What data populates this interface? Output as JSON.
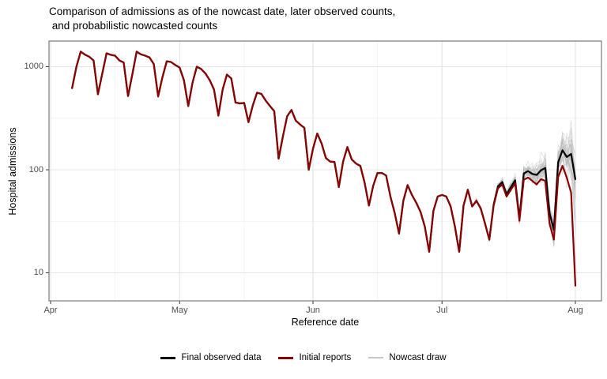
{
  "chart_data": {
    "type": "line",
    "title_line1": "Comparison of admissions as of the nowcast date, later observed counts,",
    "title_line2": " and probabilistic nowcasted counts",
    "xlabel": "Reference date",
    "ylabel": "Hospital admissions",
    "y_scale": "log10",
    "axes": {
      "y_ticks": [
        {
          "label": "10",
          "value": 10
        },
        {
          "label": "100",
          "value": 100
        },
        {
          "label": "1000",
          "value": 1000
        }
      ],
      "y_minor_values": [
        31.6,
        316.2
      ],
      "x_ticks": [
        {
          "label": "Apr",
          "day": 0
        },
        {
          "label": "May",
          "day": 30
        },
        {
          "label": "Jun",
          "day": 61
        },
        {
          "label": "Jul",
          "day": 91
        },
        {
          "label": "Aug",
          "day": 122
        }
      ],
      "x_minor_days": [
        15,
        45,
        76,
        106
      ],
      "x_total_days": 122,
      "ylim": [
        5.5,
        1750
      ]
    },
    "start_day_offset": 5,
    "series": [
      {
        "name": "Final observed data",
        "color": "#000000",
        "values": [
          620,
          1000,
          1400,
          1310,
          1250,
          1150,
          540,
          850,
          1350,
          1305,
          1280,
          1150,
          1100,
          520,
          840,
          1400,
          1320,
          1280,
          1230,
          1060,
          515,
          790,
          1130,
          1110,
          1040,
          980,
          740,
          415,
          700,
          1000,
          950,
          860,
          740,
          600,
          335,
          600,
          840,
          770,
          450,
          440,
          445,
          290,
          420,
          560,
          545,
          470,
          415,
          370,
          128,
          210,
          330,
          380,
          300,
          275,
          255,
          100,
          160,
          225,
          180,
          130,
          120,
          119,
          68,
          120,
          166,
          126,
          115,
          109,
          75,
          45,
          70,
          93,
          93,
          88,
          55,
          38,
          24,
          50,
          71,
          57,
          48,
          39,
          28,
          16,
          40,
          55,
          57,
          55,
          44,
          28,
          16,
          45,
          64,
          44,
          50,
          42,
          30,
          21,
          46,
          69,
          76,
          58,
          68,
          79,
          34,
          92,
          97,
          91,
          89,
          99,
          104,
          38,
          26,
          118,
          155,
          133,
          142,
          81
        ]
      },
      {
        "name": "Initial reports",
        "color": "#8b0000",
        "values": [
          620,
          1000,
          1400,
          1310,
          1250,
          1150,
          540,
          850,
          1350,
          1305,
          1280,
          1150,
          1100,
          520,
          840,
          1400,
          1320,
          1280,
          1230,
          1060,
          515,
          790,
          1130,
          1110,
          1040,
          980,
          740,
          415,
          700,
          1000,
          950,
          860,
          740,
          600,
          335,
          600,
          840,
          770,
          450,
          440,
          445,
          290,
          420,
          560,
          545,
          470,
          415,
          370,
          128,
          210,
          330,
          380,
          300,
          275,
          255,
          100,
          160,
          225,
          180,
          130,
          120,
          119,
          68,
          120,
          166,
          126,
          115,
          109,
          75,
          45,
          70,
          93,
          93,
          88,
          55,
          38,
          24,
          50,
          71,
          57,
          48,
          39,
          28,
          16,
          40,
          55,
          57,
          55,
          44,
          28,
          16,
          45,
          64,
          44,
          50,
          42,
          30,
          21,
          45,
          66,
          72,
          55,
          64,
          74,
          32,
          80,
          84,
          78,
          72,
          81,
          78,
          30,
          21,
          85,
          109,
          84,
          60,
          7.5
        ]
      },
      {
        "name": "Nowcast draw",
        "color": "#b3b3b3",
        "draws": {
          "count": 40,
          "anchor_index": 93,
          "start_index": 94,
          "sigma_start": 0.02,
          "sigma_end": 0.27,
          "seed": 7,
          "low_tail_every": 7,
          "low_tail_factor": 0.3
        }
      }
    ],
    "panel": {
      "grid_major_color": "#e4e4e4",
      "grid_minor_color": "#efefef",
      "border_color": "#7a7a7a",
      "tick_color": "#333333"
    }
  }
}
